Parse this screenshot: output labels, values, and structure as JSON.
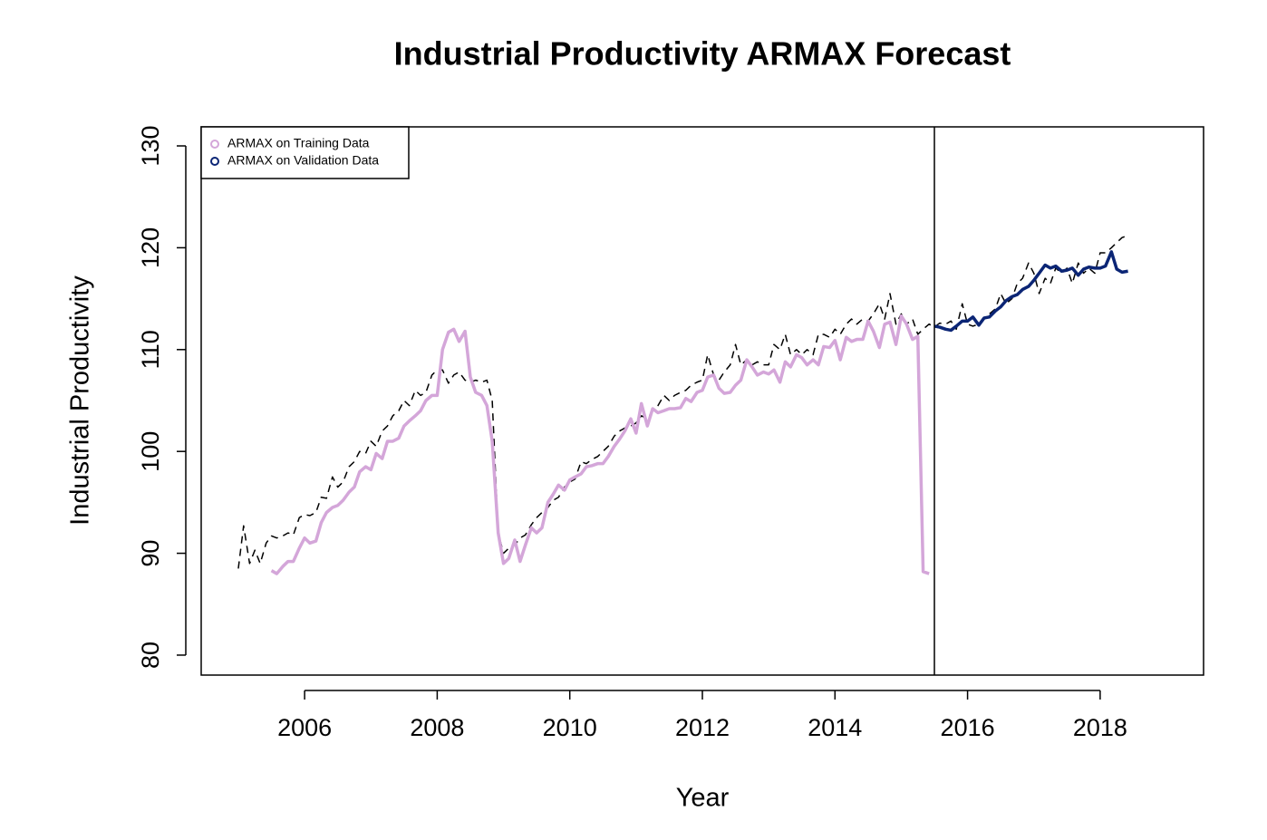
{
  "chart_data": {
    "type": "line",
    "title": "Industrial Productivity ARMAX Forecast",
    "xlabel": "Year",
    "ylabel": "Industrial Productivity",
    "x": [
      2005.0,
      2005.08,
      2005.17,
      2005.25,
      2005.33,
      2005.42,
      2005.5,
      2005.58,
      2005.67,
      2005.75,
      2005.83,
      2005.92,
      2006.0,
      2006.08,
      2006.17,
      2006.25,
      2006.33,
      2006.42,
      2006.5,
      2006.58,
      2006.67,
      2006.75,
      2006.83,
      2006.92,
      2007.0,
      2007.08,
      2007.17,
      2007.25,
      2007.33,
      2007.42,
      2007.5,
      2007.58,
      2007.67,
      2007.75,
      2007.83,
      2007.92,
      2008.0,
      2008.08,
      2008.17,
      2008.25,
      2008.33,
      2008.42,
      2008.5,
      2008.58,
      2008.67,
      2008.75,
      2008.83,
      2008.92,
      2009.0,
      2009.08,
      2009.17,
      2009.25,
      2009.33,
      2009.42,
      2009.5,
      2009.58,
      2009.67,
      2009.75,
      2009.83,
      2009.92,
      2010.0,
      2010.08,
      2010.17,
      2010.25,
      2010.33,
      2010.42,
      2010.5,
      2010.58,
      2010.67,
      2010.75,
      2010.83,
      2010.92,
      2011.0,
      2011.08,
      2011.17,
      2011.25,
      2011.33,
      2011.42,
      2011.5,
      2011.58,
      2011.67,
      2011.75,
      2011.83,
      2011.92,
      2012.0,
      2012.08,
      2012.17,
      2012.25,
      2012.33,
      2012.42,
      2012.5,
      2012.58,
      2012.67,
      2012.75,
      2012.83,
      2012.92,
      2013.0,
      2013.08,
      2013.17,
      2013.25,
      2013.33,
      2013.42,
      2013.5,
      2013.58,
      2013.67,
      2013.75,
      2013.83,
      2013.92,
      2014.0,
      2014.08,
      2014.17,
      2014.25,
      2014.33,
      2014.42,
      2014.5,
      2014.58,
      2014.67,
      2014.75,
      2014.83,
      2014.92,
      2015.0,
      2015.08,
      2015.17,
      2015.25,
      2015.33,
      2015.42,
      2015.5,
      2015.58,
      2015.67,
      2015.75,
      2015.83,
      2015.92,
      2016.0,
      2016.08,
      2016.17,
      2016.25,
      2016.33,
      2016.42,
      2016.5,
      2016.58,
      2016.67,
      2016.75,
      2016.83,
      2016.92,
      2017.0,
      2017.08,
      2017.17,
      2017.25,
      2017.33,
      2017.42,
      2017.5,
      2017.58,
      2017.67,
      2017.75,
      2017.83,
      2017.92,
      2018.0,
      2018.08,
      2018.17,
      2018.25,
      2018.33,
      2018.42
    ],
    "series": [
      {
        "color": "#000000",
        "style": "dashed",
        "width": 1.5,
        "values": [
          88.5,
          92.7,
          89,
          90.3,
          89,
          91,
          91.7,
          91.5,
          91.7,
          92,
          91.8,
          93.5,
          93.8,
          93.7,
          94,
          95.5,
          95.4,
          97.5,
          96.5,
          97,
          98.5,
          99,
          100,
          99.8,
          101,
          100.5,
          102,
          102.5,
          103.5,
          104,
          105,
          104.5,
          106,
          105.5,
          105.8,
          107.5,
          108,
          108,
          106.7,
          107.5,
          107.8,
          107,
          106.8,
          107,
          106.8,
          107,
          105,
          92,
          90,
          90.5,
          90.8,
          91.5,
          91.8,
          92.8,
          93.5,
          94,
          94.5,
          95.2,
          95.5,
          96.5,
          97,
          97.3,
          99,
          98.8,
          99.2,
          99.5,
          100,
          100.5,
          101.5,
          102,
          102.3,
          102.5,
          102.8,
          103.5,
          103.2,
          104,
          104.5,
          105.5,
          105,
          105.5,
          105.8,
          106,
          106.5,
          106.8,
          107,
          109.5,
          107.5,
          107,
          107.8,
          108.5,
          110.5,
          108.5,
          109,
          108.5,
          108.8,
          108.5,
          108.5,
          110.5,
          110,
          111.5,
          109.5,
          110,
          109.5,
          110,
          109.5,
          111.5,
          111.5,
          111.2,
          112,
          111.5,
          112.5,
          113,
          112.5,
          113,
          112.8,
          113.5,
          114.5,
          113,
          115.5,
          112.5,
          113.5,
          112.5,
          113,
          111.5,
          112,
          112.5,
          112.2,
          112.6,
          112.5,
          112.8,
          112,
          114.5,
          112.5,
          112.3,
          112.5,
          113,
          113.5,
          114,
          115.5,
          114.5,
          115,
          116.5,
          117,
          118.5,
          117.5,
          115.5,
          117,
          116.5,
          118,
          117.5,
          118,
          116.5,
          118.5,
          117.5,
          118,
          117.5,
          119.5,
          119.5,
          120,
          120.5,
          121,
          121.2
        ]
      },
      {
        "name": "ARMAX on Training Data",
        "color": "#d4a6d9",
        "style": "solid",
        "width": 3.5,
        "values": [
          null,
          null,
          null,
          null,
          null,
          null,
          88.3,
          88,
          88.7,
          89.2,
          89.2,
          90.5,
          91.5,
          91,
          91.2,
          93,
          94,
          94.5,
          94.7,
          95.2,
          96,
          96.5,
          98,
          98.5,
          98.2,
          99.8,
          99.3,
          101,
          101,
          101.3,
          102.5,
          103,
          103.5,
          104,
          105,
          105.5,
          105.5,
          110,
          111.7,
          112,
          110.8,
          111.8,
          107.3,
          105.8,
          105.5,
          104.5,
          101,
          92,
          89,
          89.5,
          91.3,
          89.2,
          90.8,
          92.5,
          92,
          92.5,
          95,
          95.8,
          96.7,
          96.2,
          97.2,
          97.5,
          97.8,
          98.5,
          98.6,
          98.8,
          98.8,
          99.5,
          100.5,
          101.2,
          102,
          103.2,
          101.8,
          104.7,
          102.5,
          104.2,
          103.8,
          104,
          104.2,
          104.2,
          104.3,
          105.2,
          104.9,
          105.8,
          106,
          107.3,
          107.5,
          106.2,
          105.7,
          105.8,
          106.5,
          107,
          109,
          108.3,
          107.5,
          107.8,
          107.6,
          108,
          106.8,
          108.8,
          108.3,
          109.5,
          109.2,
          108.5,
          109,
          108.5,
          110.3,
          110.2,
          110.9,
          109,
          111.2,
          110.8,
          111,
          111,
          112.8,
          111.8,
          110.2,
          112.5,
          112.7,
          110.5,
          113.3,
          112.5,
          111,
          111.3,
          88.2,
          88,
          null,
          null,
          null,
          null,
          null,
          null,
          null,
          null,
          null,
          null,
          null,
          null,
          null,
          null,
          null,
          null,
          null,
          null,
          null,
          null,
          null,
          null,
          null,
          null,
          null,
          null,
          null,
          null,
          null,
          null,
          null,
          null,
          null,
          null,
          null,
          null
        ]
      },
      {
        "name": "ARMAX on Validation Data",
        "color": "#0b2575",
        "style": "solid",
        "width": 3.5,
        "values": [
          null,
          null,
          null,
          null,
          null,
          null,
          null,
          null,
          null,
          null,
          null,
          null,
          null,
          null,
          null,
          null,
          null,
          null,
          null,
          null,
          null,
          null,
          null,
          null,
          null,
          null,
          null,
          null,
          null,
          null,
          null,
          null,
          null,
          null,
          null,
          null,
          null,
          null,
          null,
          null,
          null,
          null,
          null,
          null,
          null,
          null,
          null,
          null,
          null,
          null,
          null,
          null,
          null,
          null,
          null,
          null,
          null,
          null,
          null,
          null,
          null,
          null,
          null,
          null,
          null,
          null,
          null,
          null,
          null,
          null,
          null,
          null,
          null,
          null,
          null,
          null,
          null,
          null,
          null,
          null,
          null,
          null,
          null,
          null,
          null,
          null,
          null,
          null,
          null,
          null,
          null,
          null,
          null,
          null,
          null,
          null,
          null,
          null,
          null,
          null,
          null,
          null,
          null,
          null,
          null,
          null,
          null,
          null,
          null,
          null,
          null,
          null,
          null,
          null,
          null,
          null,
          null,
          null,
          null,
          null,
          null,
          null,
          null,
          null,
          null,
          null,
          112.3,
          112.2,
          112,
          111.9,
          112.3,
          112.8,
          112.8,
          113.2,
          112.4,
          113.1,
          113.2,
          113.8,
          114.2,
          114.8,
          115.2,
          115.4,
          115.9,
          116.2,
          116.8,
          117.5,
          118.3,
          118,
          118.2,
          117.7,
          117.8,
          118,
          117.3,
          117.9,
          118.1,
          118,
          118,
          118.2,
          119.6,
          117.9,
          117.6,
          117.7
        ]
      }
    ],
    "xlim": [
      2004.44,
      2019.56
    ],
    "xticks": [
      2006,
      2008,
      2010,
      2012,
      2014,
      2016,
      2018
    ],
    "ylim": [
      78.04,
      131.87
    ],
    "yticks": [
      80,
      90,
      100,
      110,
      120,
      130
    ],
    "vlines": [
      2015.5
    ],
    "legend": "top-left",
    "grid": false
  }
}
